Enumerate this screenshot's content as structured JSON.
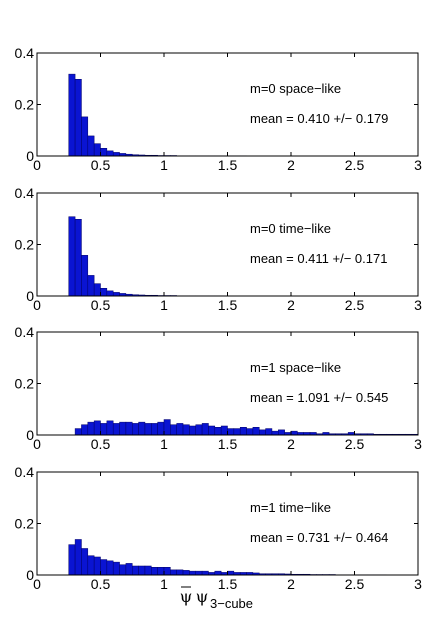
{
  "colors": {
    "bar_fill": "#0a14d2",
    "bar_edge": "#000066",
    "axis": "#000000",
    "background": "#ffffff"
  },
  "xlabel": {
    "symbol": "ψ",
    "overbar_symbol": "ψ",
    "subscript": "3−cube"
  },
  "chart_data": [
    {
      "type": "bar",
      "label": "m=0 space−like",
      "stat": "mean = 0.410 +/− 0.179",
      "xlim": [
        0,
        3
      ],
      "ylim": [
        0,
        0.4
      ],
      "xticks": [
        "0",
        "0.5",
        "1",
        "1.5",
        "2",
        "2.5",
        "3"
      ],
      "yticks": [
        "0",
        "0.2",
        "0.4"
      ],
      "bin_start": 0.25,
      "bin_width": 0.05,
      "values": [
        0.318,
        0.298,
        0.152,
        0.078,
        0.048,
        0.03,
        0.02,
        0.014,
        0.01,
        0.007,
        0.005,
        0.004,
        0.003,
        0.003,
        0.002,
        0.002,
        0.002,
        0.001,
        0.001,
        0.001,
        0.001,
        0.001,
        0.001,
        0.001,
        0.001,
        0.001,
        0.001,
        0.001,
        0,
        0,
        0,
        0,
        0,
        0,
        0,
        0,
        0,
        0,
        0,
        0,
        0,
        0,
        0,
        0,
        0,
        0,
        0,
        0,
        0,
        0,
        0,
        0,
        0,
        0,
        0
      ]
    },
    {
      "type": "bar",
      "label": "m=0 time−like",
      "stat": "mean = 0.411 +/− 0.171",
      "xlim": [
        0,
        3
      ],
      "ylim": [
        0,
        0.4
      ],
      "xticks": [
        "0",
        "0.5",
        "1",
        "1.5",
        "2",
        "2.5",
        "3"
      ],
      "yticks": [
        "0",
        "0.2",
        "0.4"
      ],
      "bin_start": 0.25,
      "bin_width": 0.05,
      "values": [
        0.308,
        0.298,
        0.158,
        0.08,
        0.048,
        0.03,
        0.02,
        0.014,
        0.01,
        0.007,
        0.005,
        0.004,
        0.003,
        0.003,
        0.002,
        0.002,
        0.002,
        0.001,
        0.001,
        0.001,
        0.001,
        0.001,
        0.001,
        0.001,
        0.001,
        0,
        0,
        0,
        0,
        0,
        0,
        0,
        0,
        0,
        0,
        0,
        0,
        0,
        0,
        0,
        0,
        0,
        0,
        0,
        0,
        0,
        0,
        0,
        0,
        0,
        0,
        0,
        0,
        0,
        0
      ]
    },
    {
      "type": "bar",
      "label": "m=1 space−like",
      "stat": "mean = 1.091 +/− 0.545",
      "xlim": [
        0,
        3
      ],
      "ylim": [
        0,
        0.4
      ],
      "xticks": [
        "0",
        "0.5",
        "1",
        "1.5",
        "2",
        "2.5",
        "3"
      ],
      "yticks": [
        "0",
        "0.2",
        "0.4"
      ],
      "bin_start": 0.25,
      "bin_width": 0.05,
      "values": [
        0,
        0.025,
        0.04,
        0.05,
        0.055,
        0.045,
        0.055,
        0.045,
        0.05,
        0.05,
        0.045,
        0.05,
        0.045,
        0.045,
        0.05,
        0.06,
        0.04,
        0.045,
        0.04,
        0.035,
        0.04,
        0.045,
        0.035,
        0.03,
        0.035,
        0.025,
        0.025,
        0.03,
        0.025,
        0.03,
        0.02,
        0.025,
        0.015,
        0.02,
        0.01,
        0.015,
        0.01,
        0.01,
        0.01,
        0.005,
        0.01,
        0.005,
        0.005,
        0.005,
        0.01,
        0.005,
        0.005,
        0.005,
        0.003,
        0.003,
        0.003,
        0.003,
        0.003,
        0.003,
        0.003
      ]
    },
    {
      "type": "bar",
      "label": "m=1 time−like",
      "stat": "mean = 0.731 +/− 0.464",
      "xlim": [
        0,
        3
      ],
      "ylim": [
        0,
        0.4
      ],
      "xticks": [
        "0",
        "0.5",
        "1",
        "1.5",
        "2",
        "2.5",
        "3"
      ],
      "yticks": [
        "0",
        "0.2",
        "0.4"
      ],
      "bin_start": 0.25,
      "bin_width": 0.05,
      "values": [
        0.118,
        0.138,
        0.103,
        0.075,
        0.07,
        0.06,
        0.055,
        0.05,
        0.04,
        0.045,
        0.035,
        0.035,
        0.035,
        0.03,
        0.03,
        0.03,
        0.02,
        0.02,
        0.018,
        0.015,
        0.015,
        0.015,
        0.01,
        0.015,
        0.01,
        0.015,
        0.01,
        0.01,
        0.01,
        0.008,
        0.005,
        0.005,
        0.005,
        0.005,
        0.004,
        0.003,
        0.003,
        0.003,
        0.002,
        0.002,
        0.002,
        0.002,
        0.001,
        0.001,
        0.001,
        0.001,
        0.001,
        0.001,
        0.001,
        0.001,
        0,
        0,
        0,
        0,
        0
      ]
    }
  ]
}
